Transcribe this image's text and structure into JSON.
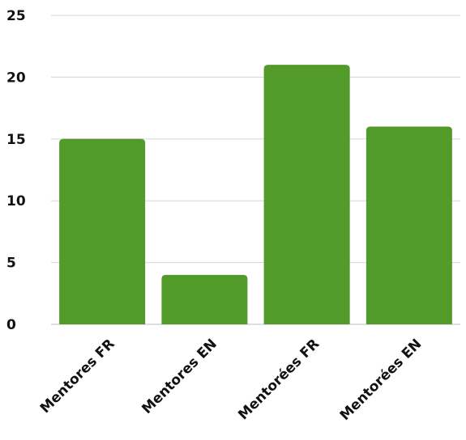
{
  "chart_data": {
    "type": "bar",
    "categories": [
      "Mentores FR",
      "Mentores EN",
      "Mentorées FR",
      "Mentorées EN"
    ],
    "values": [
      15,
      4,
      21,
      16
    ],
    "title": "",
    "xlabel": "",
    "ylabel": "",
    "ylim": [
      0,
      25
    ],
    "yticks": [
      0,
      5,
      10,
      15,
      20,
      25
    ],
    "grid": true,
    "legend": "none",
    "bar_color": "#529A2A"
  }
}
